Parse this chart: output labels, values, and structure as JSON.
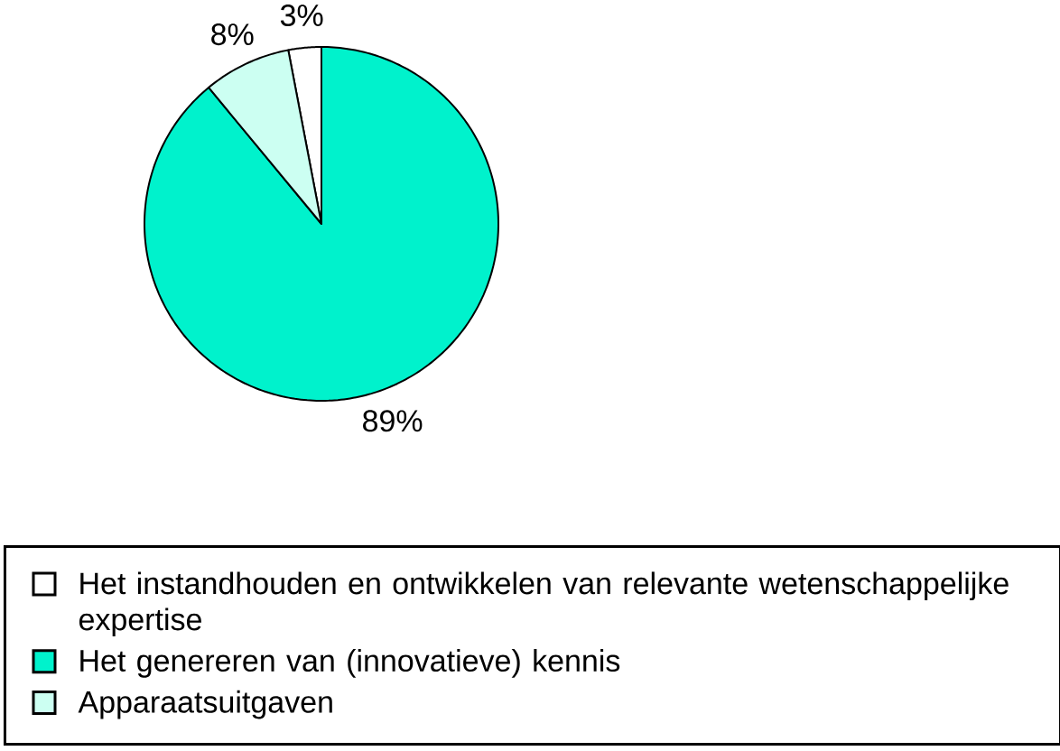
{
  "chart_data": {
    "type": "pie",
    "categories": [
      "Het instandhouden en ontwikkelen van relevante wetenschappelijke expertise",
      "Het genereren van (innovatieve) kennis",
      "Apparaatsuitgaven"
    ],
    "values": [
      3,
      89,
      8
    ],
    "colors": [
      "#ffffff",
      "#00f2cc",
      "#ccfff2"
    ],
    "value_labels": [
      "3%",
      "89%",
      "8%"
    ],
    "legend": "bottom"
  }
}
